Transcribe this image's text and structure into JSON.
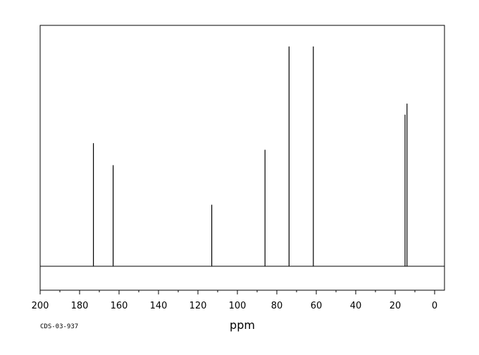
{
  "chart_data": {
    "type": "line",
    "title": "",
    "xlabel": "ppm",
    "ylabel": "",
    "xlim": [
      200,
      -5
    ],
    "x_reversed": true,
    "ylim": [
      0,
      1.0
    ],
    "grid": false,
    "legend": "none",
    "x_ticks": [
      200,
      180,
      160,
      140,
      120,
      100,
      80,
      60,
      40,
      20,
      0
    ],
    "x_tick_labels": [
      "200",
      "180",
      "160",
      "140",
      "120",
      "100",
      "80",
      "60",
      "40",
      "20",
      "0"
    ],
    "series": [
      {
        "values_description": "peak positions (ppm) and relative intensities",
        "peaks": [
          {
            "x": 173.0,
            "y": 0.56
          },
          {
            "x": 163.0,
            "y": 0.46
          },
          {
            "x": 113.0,
            "y": 0.28
          },
          {
            "x": 86.0,
            "y": 0.53
          },
          {
            "x": 73.8,
            "y": 1.0
          },
          {
            "x": 61.5,
            "y": 1.0
          },
          {
            "x": 15.0,
            "y": 0.69
          },
          {
            "x": 14.0,
            "y": 0.74
          }
        ]
      }
    ],
    "annotations": [
      "CDS-03-937"
    ]
  },
  "colors": {
    "line": "#000000",
    "background": "#ffffff"
  }
}
